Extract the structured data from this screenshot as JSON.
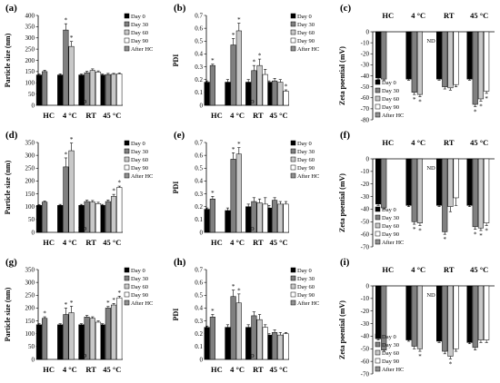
{
  "figure": {
    "series_names": [
      "Day 0",
      "Day 30",
      "Day 60",
      "Day 90",
      "After HC"
    ],
    "colors": {
      "Day 0": "#000000",
      "Day 30": "#808080",
      "Day 60": "#c8c8c8",
      "Day 90": "#ffffff",
      "After HC": "#909090"
    },
    "nd_label": "ND",
    "star": "*"
  },
  "chart_data": [
    {
      "type": "bar",
      "panel": "(a)",
      "ylabel": "Particle size (nm)",
      "categories": [
        "HC",
        "4 °C",
        "RT",
        "45 °C"
      ],
      "ylim": [
        0,
        400
      ],
      "ticks": [
        0,
        50,
        100,
        150,
        200,
        250,
        300,
        350,
        400
      ],
      "orientation": "up",
      "series": [
        {
          "name": "Day 0",
          "values": [
            135,
            135,
            135,
            135
          ]
        },
        {
          "name": "Day 30",
          "values": [
            150,
            335,
            145,
            137
          ]
        },
        {
          "name": "Day 60",
          "values": [
            null,
            262,
            155,
            138
          ]
        },
        {
          "name": "Day 90",
          "values": [
            null,
            null,
            148,
            140
          ]
        },
        {
          "name": "After HC",
          "values": [
            null,
            null,
            null,
            null
          ]
        }
      ],
      "errors": [
        [
          4,
          5,
          4,
          4
        ],
        [
          6,
          28,
          6,
          5
        ],
        [
          null,
          22,
          7,
          4
        ],
        [
          null,
          null,
          5,
          4
        ],
        [
          null,
          null,
          null,
          null
        ]
      ],
      "stars": [
        {
          "group": 1,
          "series": 1
        },
        {
          "group": 1,
          "series": 2
        }
      ],
      "nd": [
        {
          "group": 1,
          "series": 3
        }
      ],
      "legend": "top-right"
    },
    {
      "type": "bar",
      "panel": "(b)",
      "ylabel": "PDI",
      "categories": [
        "HC",
        "4 °C",
        "RT",
        "45 °C"
      ],
      "ylim": [
        0,
        0.7
      ],
      "ticks": [
        0,
        0.1,
        0.2,
        0.3,
        0.4,
        0.5,
        0.6,
        0.7
      ],
      "orientation": "up",
      "series": [
        {
          "name": "Day 0",
          "values": [
            0.18,
            0.18,
            0.18,
            0.18
          ]
        },
        {
          "name": "Day 30",
          "values": [
            0.31,
            0.47,
            0.27,
            0.19
          ]
        },
        {
          "name": "Day 60",
          "values": [
            null,
            0.58,
            0.31,
            0.18
          ]
        },
        {
          "name": "Day 90",
          "values": [
            null,
            null,
            0.24,
            0.11
          ]
        },
        {
          "name": "After HC",
          "values": [
            null,
            null,
            null,
            null
          ]
        }
      ],
      "errors": [
        [
          0.01,
          0.02,
          0.02,
          0.01
        ],
        [
          0.01,
          0.05,
          0.04,
          0.02
        ],
        [
          null,
          0.06,
          0.05,
          0.02
        ],
        [
          null,
          null,
          0.04,
          0.01
        ],
        [
          null,
          null,
          null,
          null
        ]
      ],
      "stars": [
        {
          "group": 0,
          "series": 1
        },
        {
          "group": 1,
          "series": 1
        },
        {
          "group": 1,
          "series": 2
        },
        {
          "group": 2,
          "series": 1
        },
        {
          "group": 2,
          "series": 2
        },
        {
          "group": 3,
          "series": 3
        }
      ],
      "nd": [
        {
          "group": 1,
          "series": 3
        }
      ],
      "legend": "top-right"
    },
    {
      "type": "bar",
      "panel": "(c)",
      "ylabel": "Zeta poential (mV)",
      "categories": [
        "HC",
        "4 °C",
        "RT",
        "45 °C"
      ],
      "ylim": [
        -80,
        0
      ],
      "ticks": [
        0,
        -10,
        -20,
        -30,
        -40,
        -50,
        -60,
        -70,
        -80
      ],
      "orientation": "down",
      "series": [
        {
          "name": "Day 0",
          "values": [
            -42,
            -43,
            -43,
            -43
          ]
        },
        {
          "name": "Day 30",
          "values": [
            -43,
            -55,
            -50,
            -66
          ]
        },
        {
          "name": "Day 60",
          "values": [
            null,
            -57,
            -51,
            -61
          ]
        },
        {
          "name": "Day 90",
          "values": [
            null,
            null,
            -48,
            -54
          ]
        },
        {
          "name": "After HC",
          "values": [
            null,
            null,
            null,
            null
          ]
        }
      ],
      "errors": [
        [
          1,
          1,
          1,
          1
        ],
        [
          1,
          2,
          2,
          2
        ],
        [
          null,
          2,
          2,
          2
        ],
        [
          null,
          null,
          2,
          2
        ],
        [
          null,
          null,
          null,
          null
        ]
      ],
      "stars": [
        {
          "group": 1,
          "series": 1
        },
        {
          "group": 1,
          "series": 2
        },
        {
          "group": 3,
          "series": 1
        },
        {
          "group": 3,
          "series": 2
        },
        {
          "group": 3,
          "series": 3
        }
      ],
      "nd": [
        {
          "group": 1,
          "series": 3
        }
      ],
      "legend": "bottom-left"
    },
    {
      "type": "bar",
      "panel": "(d)",
      "ylabel": "Particle size (nm)",
      "categories": [
        "HC",
        "4 °C",
        "RT",
        "45 °C"
      ],
      "ylim": [
        0,
        350
      ],
      "ticks": [
        0,
        50,
        100,
        150,
        200,
        250,
        300,
        350
      ],
      "orientation": "up",
      "series": [
        {
          "name": "Day 0",
          "values": [
            105,
            105,
            105,
            105
          ]
        },
        {
          "name": "Day 30",
          "values": [
            118,
            255,
            120,
            120
          ]
        },
        {
          "name": "Day 60",
          "values": [
            null,
            318,
            118,
            140
          ]
        },
        {
          "name": "Day 90",
          "values": [
            null,
            null,
            112,
            175
          ]
        },
        {
          "name": "After HC",
          "values": [
            null,
            null,
            null,
            null
          ]
        }
      ],
      "errors": [
        [
          3,
          4,
          4,
          4
        ],
        [
          4,
          35,
          5,
          6
        ],
        [
          null,
          30,
          6,
          8
        ],
        [
          null,
          null,
          5,
          5
        ],
        [
          null,
          null,
          null,
          null
        ]
      ],
      "stars": [
        {
          "group": 1,
          "series": 1
        },
        {
          "group": 1,
          "series": 2
        },
        {
          "group": 3,
          "series": 2
        },
        {
          "group": 3,
          "series": 3
        }
      ],
      "nd": [
        {
          "group": 1,
          "series": 3
        }
      ],
      "legend": "top-right"
    },
    {
      "type": "bar",
      "panel": "(e)",
      "ylabel": "PDI",
      "categories": [
        "HC",
        "4 °C",
        "RT",
        "45 °C"
      ],
      "ylim": [
        0,
        0.7
      ],
      "ticks": [
        0,
        0.1,
        0.2,
        0.3,
        0.4,
        0.5,
        0.6,
        0.7
      ],
      "orientation": "up",
      "series": [
        {
          "name": "Day 0",
          "values": [
            0.18,
            0.17,
            0.2,
            0.19
          ]
        },
        {
          "name": "Day 30",
          "values": [
            0.26,
            0.57,
            0.24,
            0.25
          ]
        },
        {
          "name": "Day 60",
          "values": [
            null,
            0.61,
            0.23,
            0.22
          ]
        },
        {
          "name": "Day 90",
          "values": [
            null,
            null,
            0.22,
            0.22
          ]
        },
        {
          "name": "After HC",
          "values": [
            null,
            null,
            null,
            null
          ]
        }
      ],
      "errors": [
        [
          0.01,
          0.02,
          0.02,
          0.02
        ],
        [
          0.02,
          0.05,
          0.03,
          0.02
        ],
        [
          null,
          0.05,
          0.03,
          0.02
        ],
        [
          null,
          null,
          0.05,
          0.02
        ],
        [
          null,
          null,
          null,
          null
        ]
      ],
      "stars": [
        {
          "group": 0,
          "series": 1
        },
        {
          "group": 1,
          "series": 1
        },
        {
          "group": 1,
          "series": 2
        }
      ],
      "nd": [
        {
          "group": 1,
          "series": 3
        }
      ],
      "legend": "top-right"
    },
    {
      "type": "bar",
      "panel": "(f)",
      "ylabel": "Zeta poential (mV)",
      "categories": [
        "HC",
        "4 °C",
        "RT",
        "45 °C"
      ],
      "ylim": [
        -70,
        0
      ],
      "ticks": [
        0,
        -10,
        -20,
        -30,
        -40,
        -50,
        -60,
        -70
      ],
      "orientation": "down",
      "series": [
        {
          "name": "Day 0",
          "values": [
            -36,
            -37,
            -37,
            -37
          ]
        },
        {
          "name": "Day 30",
          "values": [
            -39,
            -50,
            -58,
            -54
          ]
        },
        {
          "name": "Day 60",
          "values": [
            null,
            -51,
            -38,
            -55
          ]
        },
        {
          "name": "Day 90",
          "values": [
            null,
            null,
            -31,
            -51
          ]
        },
        {
          "name": "After HC",
          "values": [
            null,
            null,
            null,
            null
          ]
        }
      ],
      "errors": [
        [
          1,
          1,
          1,
          1
        ],
        [
          1,
          2,
          2,
          2
        ],
        [
          null,
          2,
          4,
          2
        ],
        [
          null,
          null,
          6,
          2
        ],
        [
          null,
          null,
          null,
          null
        ]
      ],
      "stars": [
        {
          "group": 1,
          "series": 1
        },
        {
          "group": 1,
          "series": 2
        },
        {
          "group": 2,
          "series": 1
        },
        {
          "group": 3,
          "series": 1
        },
        {
          "group": 3,
          "series": 2
        },
        {
          "group": 3,
          "series": 3
        }
      ],
      "nd": [
        {
          "group": 1,
          "series": 3
        }
      ],
      "legend": "bottom-left"
    },
    {
      "type": "bar",
      "panel": "(g)",
      "ylabel": "Particle size (nm)",
      "categories": [
        "HC",
        "4 °C",
        "RT",
        "45 °C"
      ],
      "ylim": [
        0,
        350
      ],
      "ticks": [
        0,
        50,
        100,
        150,
        200,
        250,
        300,
        350
      ],
      "orientation": "up",
      "series": [
        {
          "name": "Day 0",
          "values": [
            135,
            135,
            135,
            135
          ]
        },
        {
          "name": "Day 30",
          "values": [
            160,
            175,
            165,
            200
          ]
        },
        {
          "name": "Day 60",
          "values": [
            null,
            182,
            160,
            212
          ]
        },
        {
          "name": "Day 90",
          "values": [
            null,
            null,
            145,
            240
          ]
        },
        {
          "name": "After HC",
          "values": [
            null,
            null,
            null,
            null
          ]
        }
      ],
      "errors": [
        [
          4,
          4,
          4,
          4
        ],
        [
          6,
          25,
          6,
          6
        ],
        [
          null,
          25,
          6,
          6
        ],
        [
          null,
          null,
          5,
          6
        ],
        [
          null,
          null,
          null,
          null
        ]
      ],
      "stars": [
        {
          "group": 0,
          "series": 1
        },
        {
          "group": 1,
          "series": 1
        },
        {
          "group": 1,
          "series": 2
        },
        {
          "group": 3,
          "series": 1
        },
        {
          "group": 3,
          "series": 2
        },
        {
          "group": 3,
          "series": 3
        }
      ],
      "nd": [
        {
          "group": 1,
          "series": 3
        }
      ],
      "legend": "top-right"
    },
    {
      "type": "bar",
      "panel": "(h)",
      "ylabel": "PDI",
      "categories": [
        "HC",
        "4 °C",
        "RT",
        "45 °C"
      ],
      "ylim": [
        0,
        0.7
      ],
      "ticks": [
        0,
        0.1,
        0.2,
        0.3,
        0.4,
        0.5,
        0.6,
        0.7
      ],
      "orientation": "up",
      "series": [
        {
          "name": "Day 0",
          "values": [
            0.25,
            0.25,
            0.25,
            0.19
          ]
        },
        {
          "name": "Day 30",
          "values": [
            0.33,
            0.49,
            0.34,
            0.21
          ]
        },
        {
          "name": "Day 60",
          "values": [
            null,
            0.44,
            0.31,
            0.19
          ]
        },
        {
          "name": "Day 90",
          "values": [
            null,
            null,
            0.25,
            0.2
          ]
        },
        {
          "name": "After HC",
          "values": [
            null,
            null,
            null,
            null
          ]
        }
      ],
      "errors": [
        [
          0.01,
          0.02,
          0.02,
          0.01
        ],
        [
          0.02,
          0.05,
          0.03,
          0.02
        ],
        [
          null,
          0.07,
          0.04,
          0.02
        ],
        [
          null,
          null,
          0.02,
          0.01
        ],
        [
          null,
          null,
          null,
          null
        ]
      ],
      "stars": [
        {
          "group": 0,
          "series": 1
        },
        {
          "group": 1,
          "series": 1
        },
        {
          "group": 1,
          "series": 2
        }
      ],
      "nd": [
        {
          "group": 1,
          "series": 3
        }
      ],
      "legend": "top-right"
    },
    {
      "type": "bar",
      "panel": "(i)",
      "ylabel": "Zeta poential (mV)",
      "categories": [
        "HC",
        "4 °C",
        "RT",
        "45 °C"
      ],
      "ylim": [
        -70,
        0
      ],
      "ticks": [
        0,
        -10,
        -20,
        -30,
        -40,
        -50,
        -60,
        -70
      ],
      "orientation": "down",
      "series": [
        {
          "name": "Day 0",
          "values": [
            -42,
            -43,
            -44,
            -45
          ]
        },
        {
          "name": "Day 30",
          "values": [
            -51,
            -48,
            -52,
            -49
          ]
        },
        {
          "name": "Day 60",
          "values": [
            null,
            -50,
            -56,
            -43
          ]
        },
        {
          "name": "Day 90",
          "values": [
            null,
            null,
            -50,
            -43
          ]
        },
        {
          "name": "After HC",
          "values": [
            null,
            null,
            null,
            null
          ]
        }
      ],
      "errors": [
        [
          1,
          1,
          1,
          1
        ],
        [
          1,
          2,
          2,
          2
        ],
        [
          null,
          2,
          2,
          2
        ],
        [
          null,
          null,
          2,
          2
        ],
        [
          null,
          null,
          null,
          null
        ]
      ],
      "stars": [
        {
          "group": 1,
          "series": 2
        },
        {
          "group": 2,
          "series": 2
        }
      ],
      "nd": [
        {
          "group": 1,
          "series": 3
        }
      ],
      "legend": "bottom-left"
    }
  ]
}
